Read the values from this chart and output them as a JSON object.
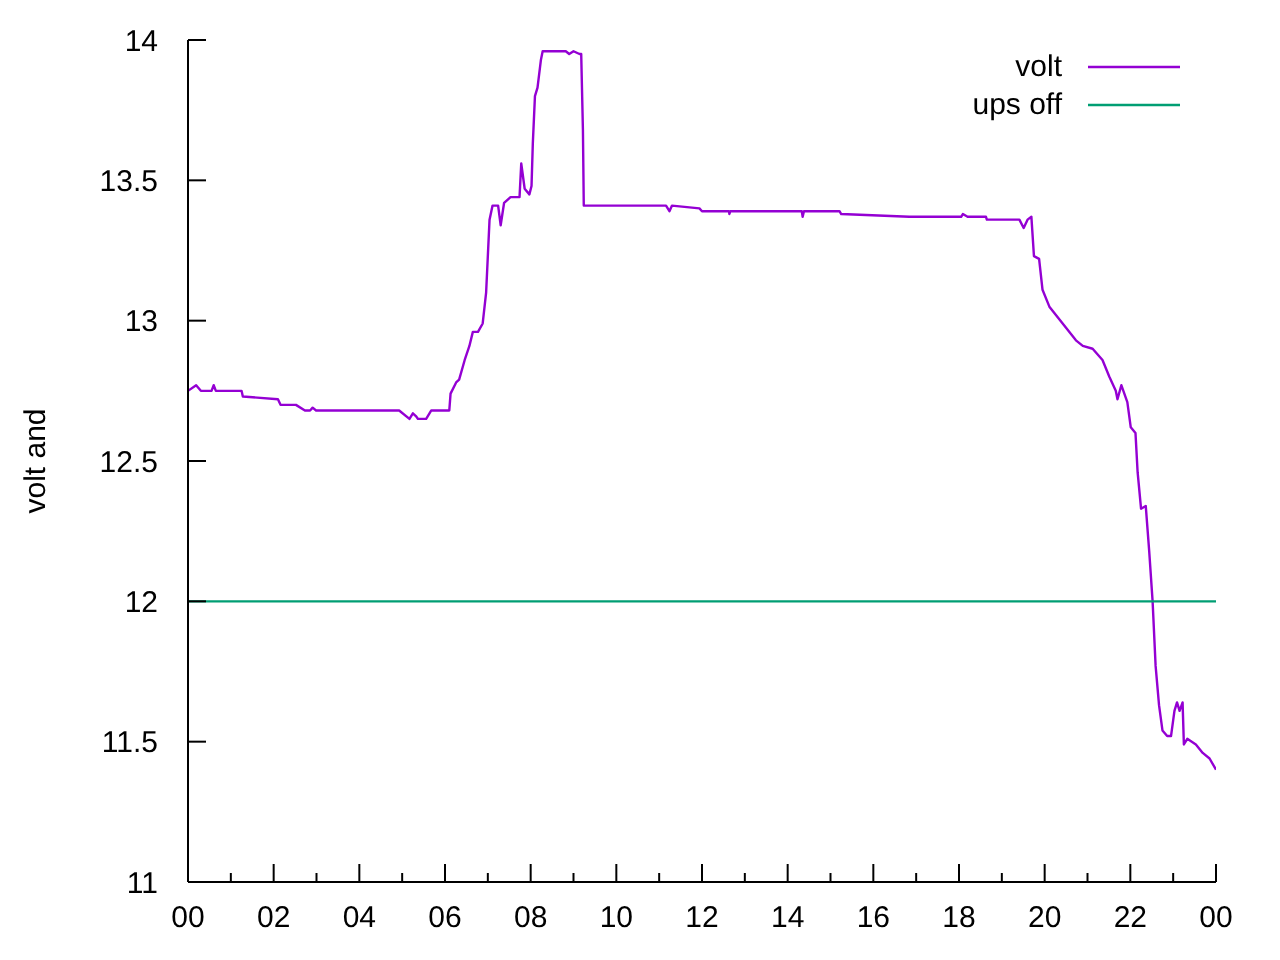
{
  "chart_data": {
    "type": "line",
    "ylabel": "volt and",
    "xlim": [
      0,
      24
    ],
    "xticks": [
      {
        "value": 0,
        "label": "00"
      },
      {
        "value": 1,
        "label": null
      },
      {
        "value": 2,
        "label": "02"
      },
      {
        "value": 3,
        "label": null
      },
      {
        "value": 4,
        "label": "04"
      },
      {
        "value": 5,
        "label": null
      },
      {
        "value": 6,
        "label": "06"
      },
      {
        "value": 7,
        "label": null
      },
      {
        "value": 8,
        "label": "08"
      },
      {
        "value": 9,
        "label": null
      },
      {
        "value": 10,
        "label": "10"
      },
      {
        "value": 11,
        "label": null
      },
      {
        "value": 12,
        "label": "12"
      },
      {
        "value": 13,
        "label": null
      },
      {
        "value": 14,
        "label": "14"
      },
      {
        "value": 15,
        "label": null
      },
      {
        "value": 16,
        "label": "16"
      },
      {
        "value": 17,
        "label": null
      },
      {
        "value": 18,
        "label": "18"
      },
      {
        "value": 19,
        "label": null
      },
      {
        "value": 20,
        "label": "20"
      },
      {
        "value": 21,
        "label": null
      },
      {
        "value": 22,
        "label": "22"
      },
      {
        "value": 23,
        "label": null
      },
      {
        "value": 24,
        "label": "00"
      }
    ],
    "ylim": [
      11,
      14
    ],
    "yticks": [
      11,
      11.5,
      12,
      12.5,
      13,
      13.5,
      14
    ],
    "legend": "top right",
    "marker": "none",
    "series": [
      {
        "name": "volt",
        "color": "#9400d3",
        "x": [
          0,
          0.19,
          0.3,
          0.55,
          0.6,
          0.65,
          1.25,
          1.28,
          2.1,
          2.16,
          2.52,
          2.73,
          2.85,
          2.91,
          2.99,
          4.93,
          5.17,
          5.25,
          5.32,
          5.37,
          5.56,
          5.68,
          6.1,
          6.13,
          6.26,
          6.33,
          6.46,
          6.57,
          6.65,
          6.77,
          6.88,
          6.96,
          7.04,
          7.11,
          7.24,
          7.3,
          7.38,
          7.53,
          7.74,
          7.78,
          7.86,
          7.97,
          8.02,
          8.05,
          8.1,
          8.16,
          8.24,
          8.28,
          8.82,
          8.9,
          9.0,
          9.14,
          9.18,
          9.22,
          9.24,
          11.16,
          11.24,
          11.3,
          11.94,
          12.0,
          12.63,
          12.64,
          12.66,
          14.33,
          14.35,
          14.38,
          15.21,
          15.25,
          16.84,
          18.05,
          18.09,
          18.2,
          18.63,
          18.65,
          19.41,
          19.51,
          19.6,
          19.69,
          19.75,
          19.87,
          19.95,
          20.11,
          20.42,
          20.73,
          20.89,
          21.12,
          21.35,
          21.51,
          21.66,
          21.7,
          21.79,
          21.93,
          22.01,
          22.12,
          22.17,
          22.25,
          22.36,
          22.44,
          22.52,
          22.59,
          22.67,
          22.75,
          22.86,
          22.95,
          23.03,
          23.09,
          23.15,
          23.22,
          23.25,
          23.33,
          23.53,
          23.69,
          23.85,
          24
        ],
        "values": [
          12.75,
          12.77,
          12.75,
          12.75,
          12.77,
          12.75,
          12.75,
          12.73,
          12.72,
          12.7,
          12.7,
          12.68,
          12.68,
          12.69,
          12.68,
          12.68,
          12.65,
          12.67,
          12.66,
          12.65,
          12.65,
          12.68,
          12.68,
          12.74,
          12.78,
          12.79,
          12.86,
          12.91,
          12.96,
          12.96,
          12.99,
          13.1,
          13.36,
          13.41,
          13.41,
          13.34,
          13.42,
          13.44,
          13.44,
          13.56,
          13.47,
          13.45,
          13.48,
          13.63,
          13.8,
          13.83,
          13.93,
          13.96,
          13.96,
          13.95,
          13.96,
          13.95,
          13.95,
          13.68,
          13.41,
          13.41,
          13.39,
          13.41,
          13.4,
          13.39,
          13.39,
          13.38,
          13.39,
          13.39,
          13.37,
          13.39,
          13.39,
          13.38,
          13.37,
          13.37,
          13.38,
          13.37,
          13.37,
          13.36,
          13.36,
          13.33,
          13.36,
          13.37,
          13.23,
          13.22,
          13.11,
          13.05,
          12.99,
          12.93,
          12.91,
          12.9,
          12.86,
          12.8,
          12.75,
          12.72,
          12.77,
          12.71,
          12.62,
          12.6,
          12.46,
          12.33,
          12.34,
          12.18,
          12.0,
          11.77,
          11.63,
          11.54,
          11.52,
          11.52,
          11.61,
          11.64,
          11.61,
          11.64,
          11.49,
          11.51,
          11.49,
          11.46,
          11.44,
          11.4
        ]
      },
      {
        "name": "ups off",
        "color": "#009e73",
        "x": [
          0,
          24
        ],
        "values": [
          12,
          12
        ]
      }
    ]
  }
}
